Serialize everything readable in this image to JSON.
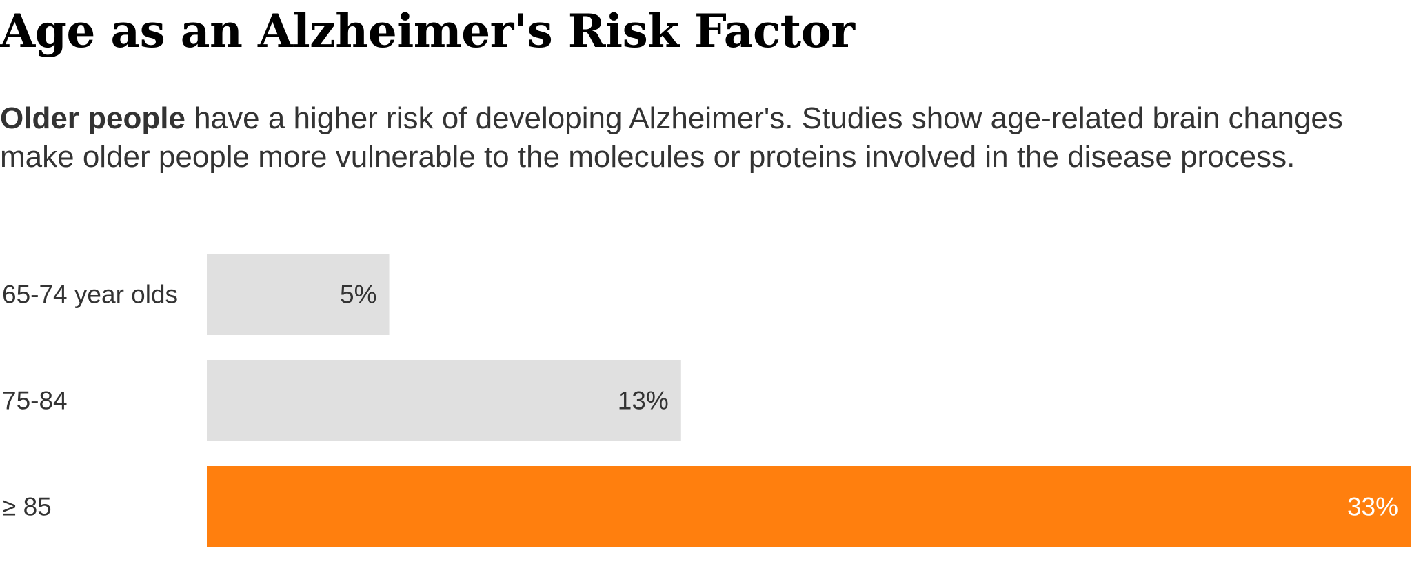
{
  "header": {
    "title": "Age as an Alzheimer's Risk Factor",
    "subtitle_lead": "Older people",
    "subtitle_rest": " have a higher risk of developing Alzheimer's. Studies show age-related brain changes make older people more vulnerable to the molecules or proteins involved in the disease process."
  },
  "chart_data": {
    "type": "bar",
    "orientation": "horizontal",
    "categories": [
      "65-74 year olds",
      "75-84",
      "≥ 85"
    ],
    "values": [
      5,
      13,
      33
    ],
    "value_labels": [
      "5%",
      "13%",
      "33%"
    ],
    "unit": "%",
    "xlim": [
      0,
      33
    ],
    "grid": false,
    "legend": "none",
    "colors": {
      "default": "#e0e0e0",
      "highlight": "#ff7f0e",
      "label_dark": "#333333",
      "label_light": "#ffffff"
    },
    "highlight_index": 2
  }
}
